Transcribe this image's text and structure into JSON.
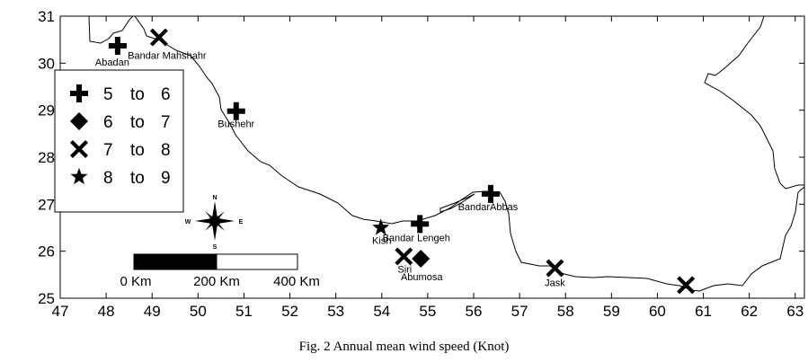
{
  "caption": "Fig. 2 Annual mean wind speed (Knot)",
  "chart_data": {
    "type": "scatter",
    "x_ticks": [
      47,
      48,
      49,
      50,
      51,
      52,
      53,
      54,
      55,
      56,
      57,
      58,
      59,
      60,
      61,
      62,
      63
    ],
    "y_ticks": [
      25,
      26,
      27,
      28,
      29,
      30,
      31
    ],
    "xlim": [
      47,
      63.2
    ],
    "ylim": [
      25,
      31
    ],
    "legend": [
      {
        "marker": "plus",
        "lo": "5",
        "to": "to",
        "hi": "6"
      },
      {
        "marker": "diamond",
        "lo": "6",
        "to": "to",
        "hi": "7"
      },
      {
        "marker": "cross",
        "lo": "7",
        "to": "to",
        "hi": "8"
      },
      {
        "marker": "star",
        "lo": "8",
        "to": "to",
        "hi": "9"
      }
    ],
    "stations": [
      {
        "name": "Abadan",
        "lon": 48.25,
        "lat": 30.37,
        "marker": "plus"
      },
      {
        "name": "Bandar Mahshahr",
        "lon": 49.15,
        "lat": 30.55,
        "marker": "cross"
      },
      {
        "name": "Bushehr",
        "lon": 50.83,
        "lat": 28.98,
        "marker": "plus"
      },
      {
        "name": "BandarAbbas",
        "lon": 56.37,
        "lat": 27.22,
        "marker": "plus"
      },
      {
        "name": "Bandar Lengeh",
        "lon": 54.83,
        "lat": 26.58,
        "marker": "plus"
      },
      {
        "name": "Kish",
        "lon": 53.98,
        "lat": 26.5,
        "marker": "star"
      },
      {
        "name": "Siri",
        "lon": 54.48,
        "lat": 25.89,
        "marker": "cross"
      },
      {
        "name": "Abumosa",
        "lon": 54.85,
        "lat": 25.84,
        "marker": "diamond"
      },
      {
        "name": "Jask",
        "lon": 57.77,
        "lat": 25.64,
        "marker": "cross"
      },
      {
        "name": "",
        "lon": 60.62,
        "lat": 25.28,
        "marker": "cross"
      }
    ],
    "scale_bar": {
      "labels": [
        "0 Km",
        "200 Km",
        "400 Km"
      ]
    },
    "compass": {
      "n": "N",
      "s": "S",
      "e": "E",
      "w": "W"
    }
  }
}
